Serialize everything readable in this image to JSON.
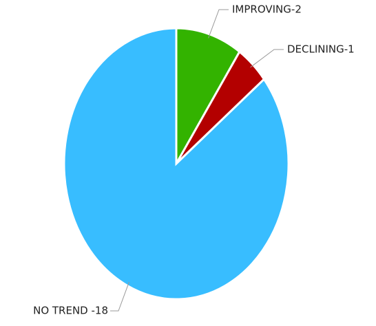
{
  "chart_data": {
    "type": "pie",
    "values": [
      2,
      1,
      18
    ],
    "value_labels": [
      "IMPROVING-2",
      "DECLINING-1",
      "NO TREND -18"
    ],
    "colors": [
      "#33b300",
      "#b30000",
      "#38bdff"
    ]
  }
}
